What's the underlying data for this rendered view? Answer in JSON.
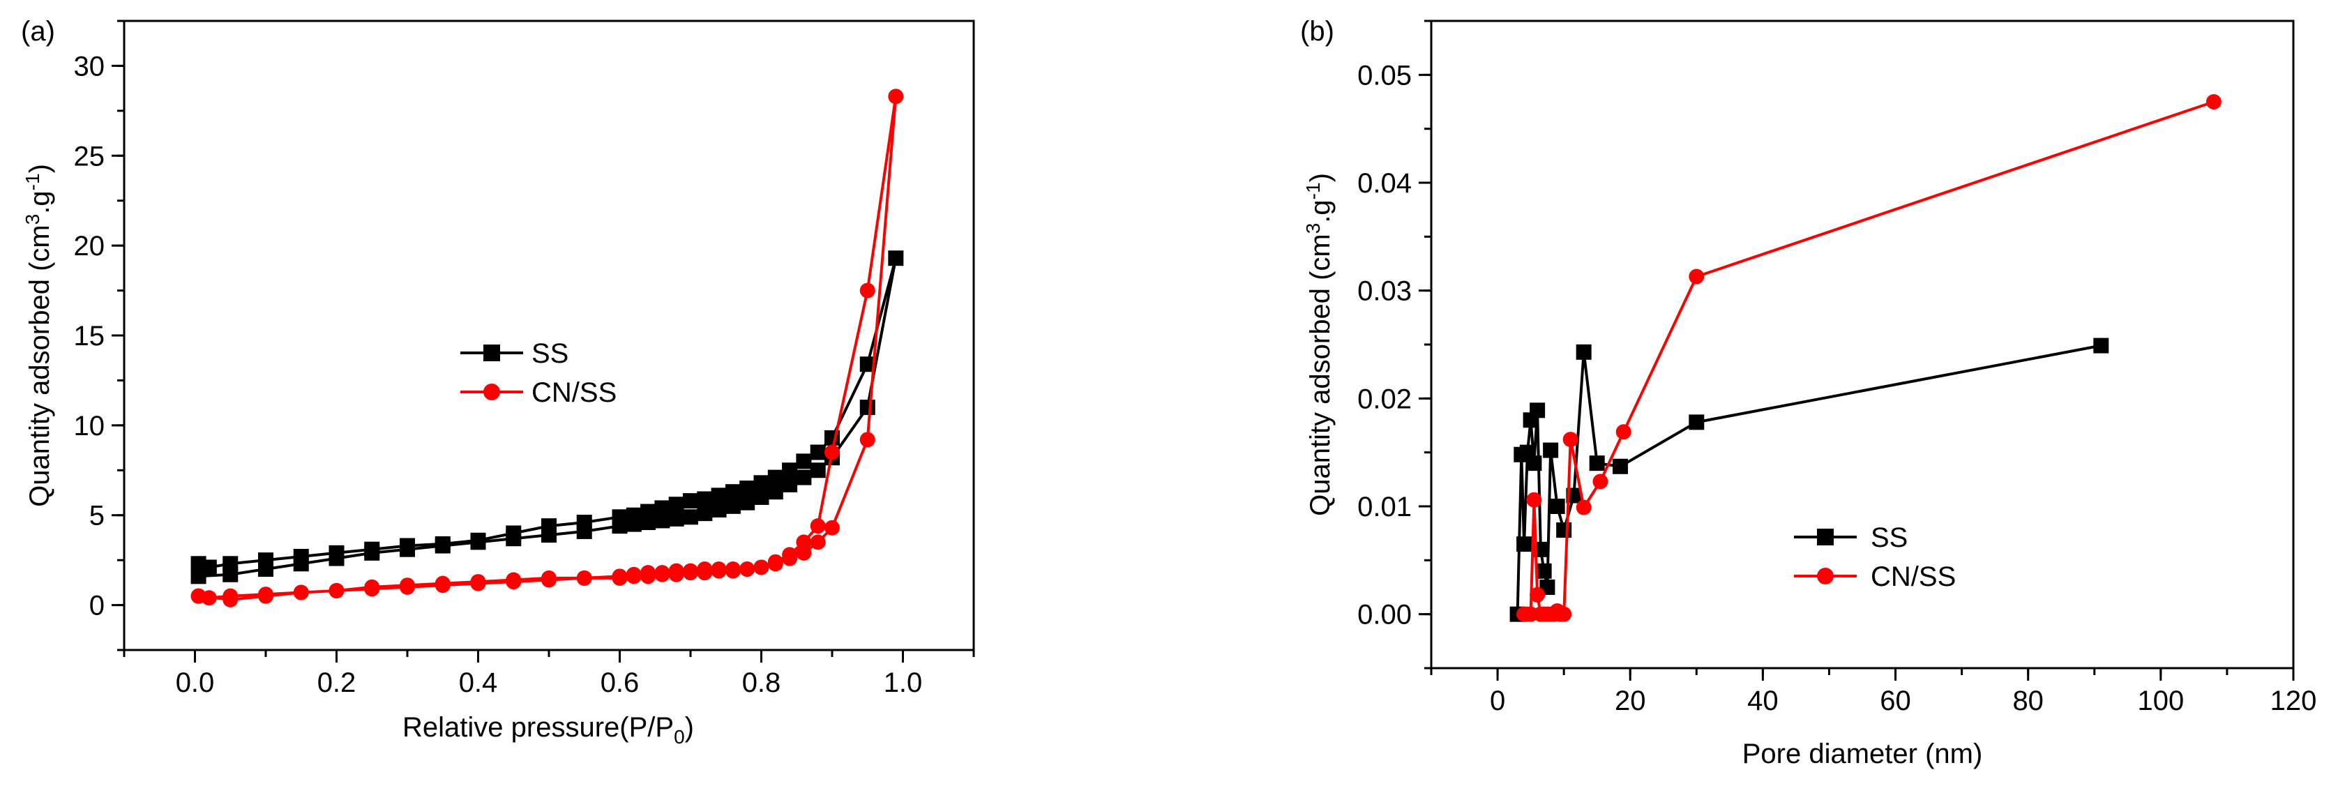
{
  "chart_data": [
    {
      "panel_label": "(a)",
      "type": "line",
      "xlabel": "Relative pressure(P/P",
      "xlabel_sub": "0",
      "xlabel_end": ")",
      "ylabel": "Quantity adsorbed (cm",
      "ylabel_sup1": "3",
      "ylabel_mid": ".g",
      "ylabel_sup2": "-1",
      "ylabel_end": ")",
      "xlim": [
        -0.1,
        1.1
      ],
      "ylim": [
        -2.5,
        32.5
      ],
      "xticks": [
        0.0,
        0.2,
        0.4,
        0.6,
        0.8,
        1.0
      ],
      "xtick_labels": [
        "0.0",
        "0.2",
        "0.4",
        "0.6",
        "0.8",
        "1.0"
      ],
      "yticks": [
        0,
        5,
        10,
        15,
        20,
        25,
        30
      ],
      "ytick_labels": [
        "0",
        "5",
        "10",
        "15",
        "20",
        "25",
        "30"
      ],
      "legend": [
        "SS",
        "CN/SS"
      ],
      "legend_position": "center",
      "series": [
        {
          "name": "SS",
          "color": "#000000",
          "marker": "square",
          "x": [
            0.005,
            0.05,
            0.1,
            0.15,
            0.2,
            0.25,
            0.3,
            0.35,
            0.4,
            0.45,
            0.5,
            0.55,
            0.6,
            0.62,
            0.64,
            0.66,
            0.68,
            0.7,
            0.72,
            0.74,
            0.76,
            0.78,
            0.8,
            0.82,
            0.84,
            0.86,
            0.88,
            0.9,
            0.95,
            0.99,
            0.95,
            0.9,
            0.88,
            0.86,
            0.84,
            0.82,
            0.8,
            0.78,
            0.76,
            0.74,
            0.72,
            0.7,
            0.68,
            0.66,
            0.64,
            0.62,
            0.6,
            0.55,
            0.5,
            0.45,
            0.4,
            0.35,
            0.3,
            0.25,
            0.2,
            0.15,
            0.1,
            0.05,
            0.02,
            0.005
          ],
          "y": [
            1.6,
            1.7,
            2.0,
            2.3,
            2.6,
            2.9,
            3.1,
            3.3,
            3.5,
            3.7,
            3.9,
            4.1,
            4.4,
            4.5,
            4.6,
            4.7,
            4.8,
            4.9,
            5.1,
            5.3,
            5.5,
            5.7,
            6.0,
            6.3,
            6.7,
            7.1,
            7.5,
            8.2,
            11.0,
            19.3,
            13.4,
            9.3,
            8.5,
            8.0,
            7.5,
            7.1,
            6.8,
            6.5,
            6.3,
            6.1,
            5.9,
            5.8,
            5.6,
            5.4,
            5.2,
            5.0,
            4.9,
            4.6,
            4.4,
            4.0,
            3.6,
            3.4,
            3.3,
            3.1,
            2.9,
            2.7,
            2.5,
            2.3,
            2.1,
            2.3
          ]
        },
        {
          "name": "CN/SS",
          "color": "#ff0000",
          "marker": "circle",
          "x": [
            0.005,
            0.05,
            0.1,
            0.15,
            0.2,
            0.25,
            0.3,
            0.35,
            0.4,
            0.45,
            0.5,
            0.55,
            0.6,
            0.62,
            0.64,
            0.66,
            0.68,
            0.7,
            0.72,
            0.74,
            0.76,
            0.78,
            0.8,
            0.82,
            0.84,
            0.86,
            0.88,
            0.9,
            0.95,
            0.99,
            0.95,
            0.9,
            0.88,
            0.86,
            0.84,
            0.82,
            0.8,
            0.78,
            0.76,
            0.74,
            0.72,
            0.7,
            0.68,
            0.66,
            0.64,
            0.62,
            0.6,
            0.55,
            0.5,
            0.45,
            0.4,
            0.35,
            0.3,
            0.25,
            0.2,
            0.15,
            0.1,
            0.05,
            0.02,
            0.005
          ],
          "y": [
            0.5,
            0.3,
            0.5,
            0.7,
            0.8,
            1.0,
            1.1,
            1.2,
            1.3,
            1.4,
            1.5,
            1.5,
            1.6,
            1.7,
            1.8,
            1.8,
            1.9,
            1.9,
            2.0,
            2.0,
            2.0,
            2.0,
            2.1,
            2.4,
            2.8,
            3.5,
            4.4,
            8.5,
            17.5,
            28.3,
            9.2,
            4.3,
            3.5,
            2.9,
            2.6,
            2.3,
            2.1,
            2.0,
            1.9,
            1.9,
            1.8,
            1.8,
            1.7,
            1.7,
            1.6,
            1.6,
            1.5,
            1.5,
            1.4,
            1.3,
            1.2,
            1.1,
            1.0,
            0.9,
            0.8,
            0.7,
            0.6,
            0.5,
            0.4,
            0.5
          ]
        }
      ]
    },
    {
      "panel_label": "(b)",
      "type": "line",
      "xlabel": "Pore diameter (nm)",
      "ylabel": "Quantity adsorbed (cm",
      "ylabel_sup1": "3",
      "ylabel_mid": ".g",
      "ylabel_sup2": "-1",
      "ylabel_end": ")",
      "xlim": [
        -10,
        120
      ],
      "ylim": [
        -0.005,
        0.055
      ],
      "xticks": [
        0,
        20,
        40,
        60,
        80,
        100,
        120
      ],
      "xtick_labels": [
        "0",
        "20",
        "40",
        "60",
        "80",
        "100",
        "120"
      ],
      "yticks": [
        0.0,
        0.01,
        0.02,
        0.03,
        0.04,
        0.05
      ],
      "ytick_labels": [
        "0.00",
        "0.01",
        "0.02",
        "0.03",
        "0.04",
        "0.05"
      ],
      "legend": [
        "SS",
        "CN/SS"
      ],
      "legend_position": "lower-center",
      "series": [
        {
          "name": "SS",
          "color": "#000000",
          "marker": "square",
          "x": [
            3.0,
            3.6,
            4.0,
            4.5,
            5.0,
            5.5,
            6.0,
            6.5,
            7.0,
            7.5,
            8.0,
            9.0,
            10.0,
            11.5,
            13.0,
            15.0,
            18.5,
            30.0,
            91.0
          ],
          "y": [
            0.0,
            0.0148,
            0.0065,
            0.015,
            0.018,
            0.014,
            0.0189,
            0.006,
            0.004,
            0.0025,
            0.0152,
            0.01,
            0.0078,
            0.011,
            0.0243,
            0.014,
            0.0137,
            0.0178,
            0.0249
          ]
        },
        {
          "name": "CN/SS",
          "color": "#ff0000",
          "marker": "circle",
          "x": [
            4.0,
            4.5,
            5.0,
            5.5,
            6.0,
            6.5,
            7.0,
            7.5,
            8.0,
            8.5,
            9.0,
            9.5,
            10.0,
            11.0,
            13.0,
            15.5,
            19.0,
            30.0,
            108.0
          ],
          "y": [
            0.0,
            0.0,
            0.0,
            0.0106,
            0.0018,
            0.0,
            0.0,
            0.0,
            0.0,
            0.0,
            0.0003,
            0.0,
            0.0,
            0.0162,
            0.0099,
            0.0123,
            0.0169,
            0.0313,
            0.0475
          ]
        }
      ]
    }
  ]
}
